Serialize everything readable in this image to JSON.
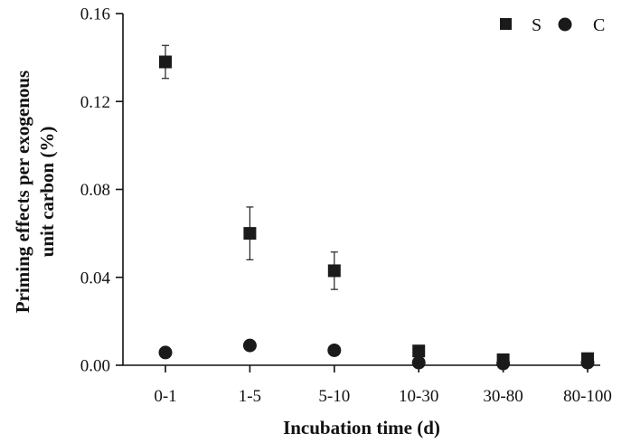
{
  "chart_data": {
    "type": "scatter",
    "categories": [
      "0-1",
      "1-5",
      "5-10",
      "10-30",
      "30-80",
      "80-100"
    ],
    "xlabel": "Incubation time (d)",
    "ylabel_lines": [
      "Priming effects per exogenous",
      "unit carbon (%)"
    ],
    "ylim": [
      0,
      0.16
    ],
    "yticks": [
      "0.00",
      "0.04",
      "0.08",
      "0.12",
      "0.16"
    ],
    "grid": false,
    "legend_position": "top-right",
    "series": [
      {
        "name": "S",
        "marker": "square",
        "values": [
          0.138,
          0.06,
          0.043,
          0.0065,
          0.0025,
          0.003
        ],
        "errors": [
          0.0075,
          0.012,
          0.0085,
          0.0,
          0.0,
          0.0
        ]
      },
      {
        "name": "C",
        "marker": "circle",
        "values": [
          0.0058,
          0.009,
          0.0068,
          0.0012,
          0.0008,
          0.0012
        ],
        "errors": [
          0,
          0,
          0,
          0,
          0,
          0
        ]
      }
    ]
  }
}
